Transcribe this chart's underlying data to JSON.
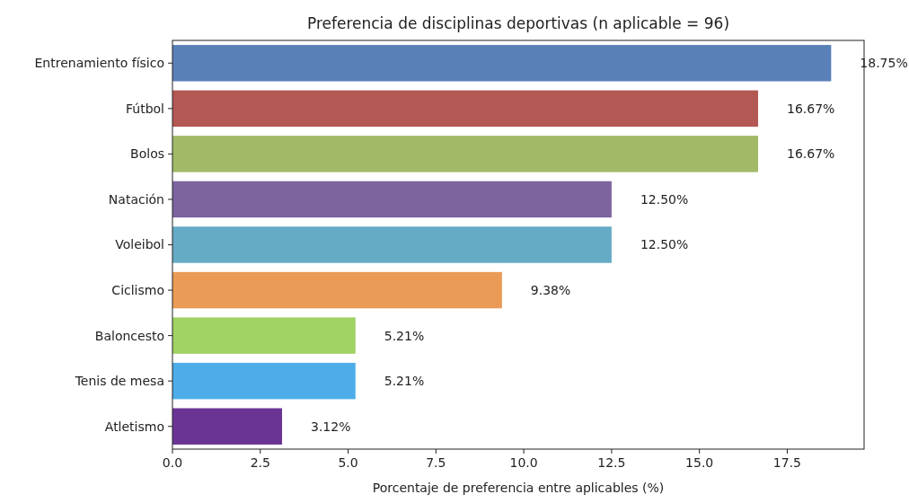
{
  "chart_data": {
    "type": "bar",
    "orientation": "horizontal",
    "title": "Preferencia de disciplinas deportivas (n aplicable = 96)",
    "xlabel": "Porcentaje de preferencia entre aplicables (%)",
    "categories": [
      "Entrenamiento físico",
      "Fútbol",
      "Bolos",
      "Natación",
      "Voleibol",
      "Ciclismo",
      "Baloncesto",
      "Tenis de mesa",
      "Atletismo"
    ],
    "values": [
      18.75,
      16.67,
      16.67,
      12.5,
      12.5,
      9.38,
      5.21,
      5.21,
      3.12
    ],
    "colors": [
      "#5a80b8",
      "#b35853",
      "#a2ba67",
      "#7d649e",
      "#66abc5",
      "#ea9c57",
      "#a1d264",
      "#4dade9",
      "#6a3495"
    ],
    "value_labels": [
      "18.75%",
      "16.67%",
      "16.67%",
      "12.50%",
      "12.50%",
      "9.38%",
      "5.21%",
      "5.21%",
      "3.12%"
    ],
    "xlim": [
      0,
      19.6875
    ],
    "xticks": [
      {
        "value": 0,
        "label": "0.0"
      },
      2.5,
      {
        "value": 5,
        "label": "5.0"
      },
      7.5,
      {
        "value": 10,
        "label": "10.0"
      },
      12.5,
      {
        "value": 15,
        "label": "15.0"
      },
      17.5
    ],
    "grid": false
  }
}
